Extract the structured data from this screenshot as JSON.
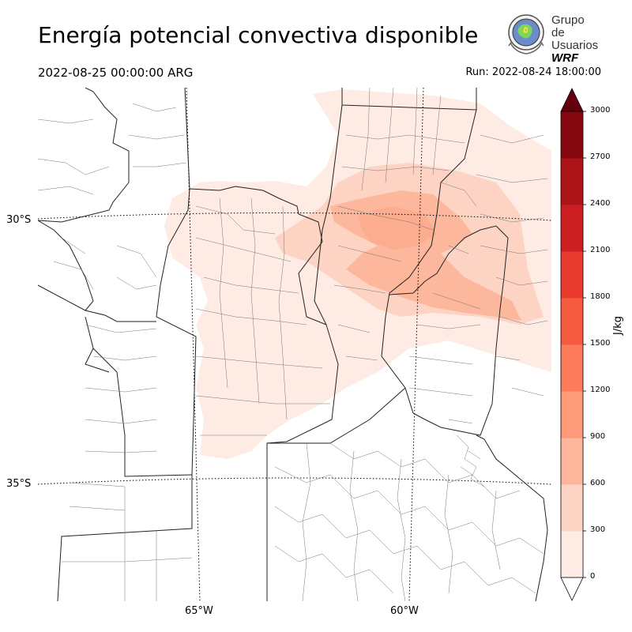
{
  "header": {
    "title": "Energía potencial convectiva disponible",
    "valid_time": "2022-08-25 00:00:00 ARG",
    "run_time": "Run: 2022-08-24 18:00:00"
  },
  "logo": {
    "line1": "Grupo de",
    "line2": "Usuarios",
    "line3": "WRF"
  },
  "map": {
    "lat_labels": [
      "30°S",
      "35°S"
    ],
    "lon_labels": [
      "65°W",
      "60°W"
    ]
  },
  "colorbar": {
    "unit": "J/kg",
    "ticks": [
      "0",
      "300",
      "600",
      "900",
      "1200",
      "1500",
      "1800",
      "2100",
      "2400",
      "2700",
      "3000"
    ],
    "colors": [
      "#fdebe4",
      "#fdd4c3",
      "#fcb79c",
      "#fc9a7a",
      "#fb7b5b",
      "#f65b3f",
      "#e83b2e",
      "#cc1f22",
      "#ad141a",
      "#850811"
    ],
    "extend_low_color": "#ffffff",
    "extend_high_color": "#67000d"
  }
}
